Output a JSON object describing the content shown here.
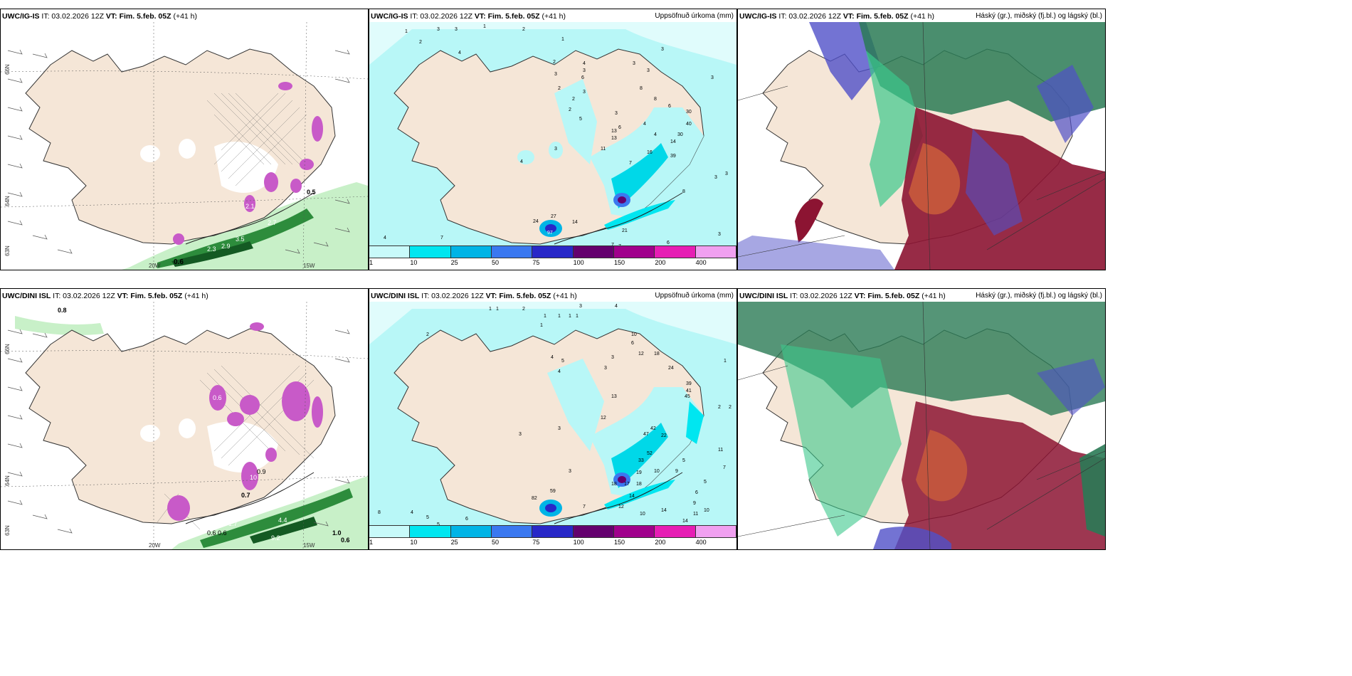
{
  "panels": [
    {
      "model": "UWC/IG-IS",
      "issued": "IT: 03.02.2026 12Z",
      "vt_label": "VT:",
      "valid": "Fim. 5.feb. 05Z",
      "lead": "(+41 h)",
      "right_title": ""
    },
    {
      "model": "UWC/IG-IS",
      "issued": "IT: 03.02.2026 12Z",
      "vt_label": "VT:",
      "valid": "Fim. 5.feb. 05Z",
      "lead": "(+41 h)",
      "right_title": "Uppsöfnuð úrkoma (mm)"
    },
    {
      "model": "UWC/IG-IS",
      "issued": "IT: 03.02.2026 12Z",
      "vt_label": "VT:",
      "valid": "Fim. 5.feb. 05Z",
      "lead": "(+41 h)",
      "right_title": "Háský (gr.), miðský (fj.bl.) og lágský (bl.)"
    },
    {
      "model": "UWC/DINI ISL",
      "issued": "IT: 03.02.2026 12Z",
      "vt_label": "VT:",
      "valid": "Fim. 5.feb. 05Z",
      "lead": "(+41 h)",
      "right_title": ""
    },
    {
      "model": "UWC/DINI ISL",
      "issued": "IT: 03.02.2026 12Z",
      "vt_label": "VT:",
      "valid": "Fim. 5.feb. 05Z",
      "lead": "(+41 h)",
      "right_title": "Uppsöfnuð úrkoma (mm)"
    },
    {
      "model": "UWC/DINI ISL",
      "issued": "IT: 03.02.2026 12Z",
      "vt_label": "VT:",
      "valid": "Fim. 5.feb. 05Z",
      "lead": "(+41 h)",
      "right_title": "Háský (gr.), miðský (fj.bl.) og lágský (bl.)"
    }
  ],
  "legend": {
    "labels": [
      "1",
      "10",
      "25",
      "50",
      "75",
      "100",
      "150",
      "200",
      "400"
    ],
    "colors": [
      "#c8fafa",
      "#00e6f0",
      "#00b4e6",
      "#3a78f0",
      "#2828c8",
      "#64006e",
      "#a0008c",
      "#e61eb4",
      "#f0a0f0"
    ]
  },
  "axis_labels": {
    "lat66": "66N",
    "lat64": "64N",
    "lat65": "65N",
    "lon20": "20W",
    "lon15": "15W",
    "lat63": "63N"
  },
  "left_values": {
    "top": [
      "0.6",
      "2.3",
      "2.9",
      "3.5",
      "2.7",
      "0.5",
      "2.1"
    ],
    "bottom": [
      "0.8",
      "0.6",
      "0.7",
      "0.6",
      "0.6",
      "0.6",
      "1.7",
      "4.4",
      "1.0",
      "0.6",
      "10",
      "0.9",
      "9.2"
    ]
  },
  "mid_values_top": [
    "1",
    "3",
    "3",
    "1",
    "2",
    "1",
    "2",
    "4",
    "2",
    "3",
    "2",
    "2",
    "3",
    "6",
    "3",
    "4",
    "2",
    "5",
    "3",
    "4",
    "3",
    "6",
    "11",
    "13",
    "7",
    "16",
    "4",
    "4",
    "3",
    "3",
    "21",
    "27",
    "14",
    "24",
    "97",
    "10",
    "7",
    "7",
    "11",
    "4",
    "5",
    "8",
    "7",
    "6",
    "3",
    "8",
    "8",
    "6",
    "13",
    "30",
    "40",
    "39",
    "30",
    "14",
    "3",
    "3",
    "3",
    "3"
  ],
  "mid_values_bottom": [
    "1",
    "1",
    "3",
    "4",
    "2",
    "1",
    "1",
    "1",
    "1",
    "1",
    "2",
    "10",
    "6",
    "12",
    "18",
    "3",
    "4",
    "5",
    "4",
    "24",
    "39",
    "45",
    "41",
    "42",
    "47",
    "22",
    "52",
    "33",
    "18",
    "19",
    "17",
    "18",
    "14",
    "12",
    "10",
    "14",
    "59",
    "82",
    "7",
    "8",
    "4",
    "5",
    "5",
    "6",
    "13",
    "12",
    "5",
    "9",
    "10",
    "2",
    "2",
    "1",
    "11",
    "7",
    "9",
    "10",
    "14",
    "11",
    "6",
    "5",
    "4",
    "3",
    "3",
    "3",
    "3"
  ],
  "map_colors": {
    "land": "#f5e6d7",
    "sea_precip": "#b8f7f7",
    "magenta": "#c85ac8",
    "green": "#2d8c3c",
    "darkgreen": "#145a23",
    "cloud_high": "#2a7a55",
    "cloud_mid": "#5050c8",
    "cloud_low": "#8c1432"
  }
}
